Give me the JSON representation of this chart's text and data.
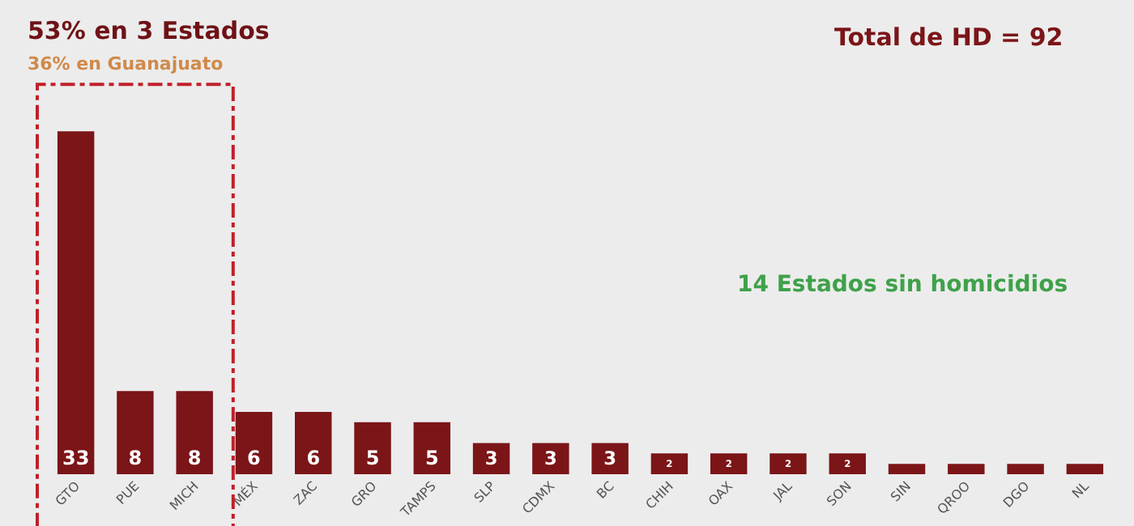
{
  "chart_data": {
    "type": "bar",
    "title": "53% en 3 Estados",
    "subtitle": "36% en Guanajuato",
    "annotations": [
      "Total de HD = 92",
      "14 Estados sin homicidios"
    ],
    "categories": [
      "GTO",
      "PUE",
      "MICH",
      "MÉX",
      "ZAC",
      "GRO",
      "TAMPS",
      "SLP",
      "CDMX",
      "BC",
      "CHIH",
      "OAX",
      "JAL",
      "SON",
      "SIN",
      "QROO",
      "DGO",
      "NL"
    ],
    "values": [
      33,
      8,
      8,
      6,
      6,
      5,
      5,
      3,
      3,
      3,
      2,
      2,
      2,
      2,
      1,
      1,
      1,
      1
    ],
    "value_labels": [
      "33",
      "8",
      "8",
      "6",
      "6",
      "5",
      "5",
      "3",
      "3",
      "3",
      "2",
      "2",
      "2",
      "2",
      null,
      null,
      null,
      null
    ],
    "color": "#7b1518",
    "grid": false,
    "legend": false
  }
}
